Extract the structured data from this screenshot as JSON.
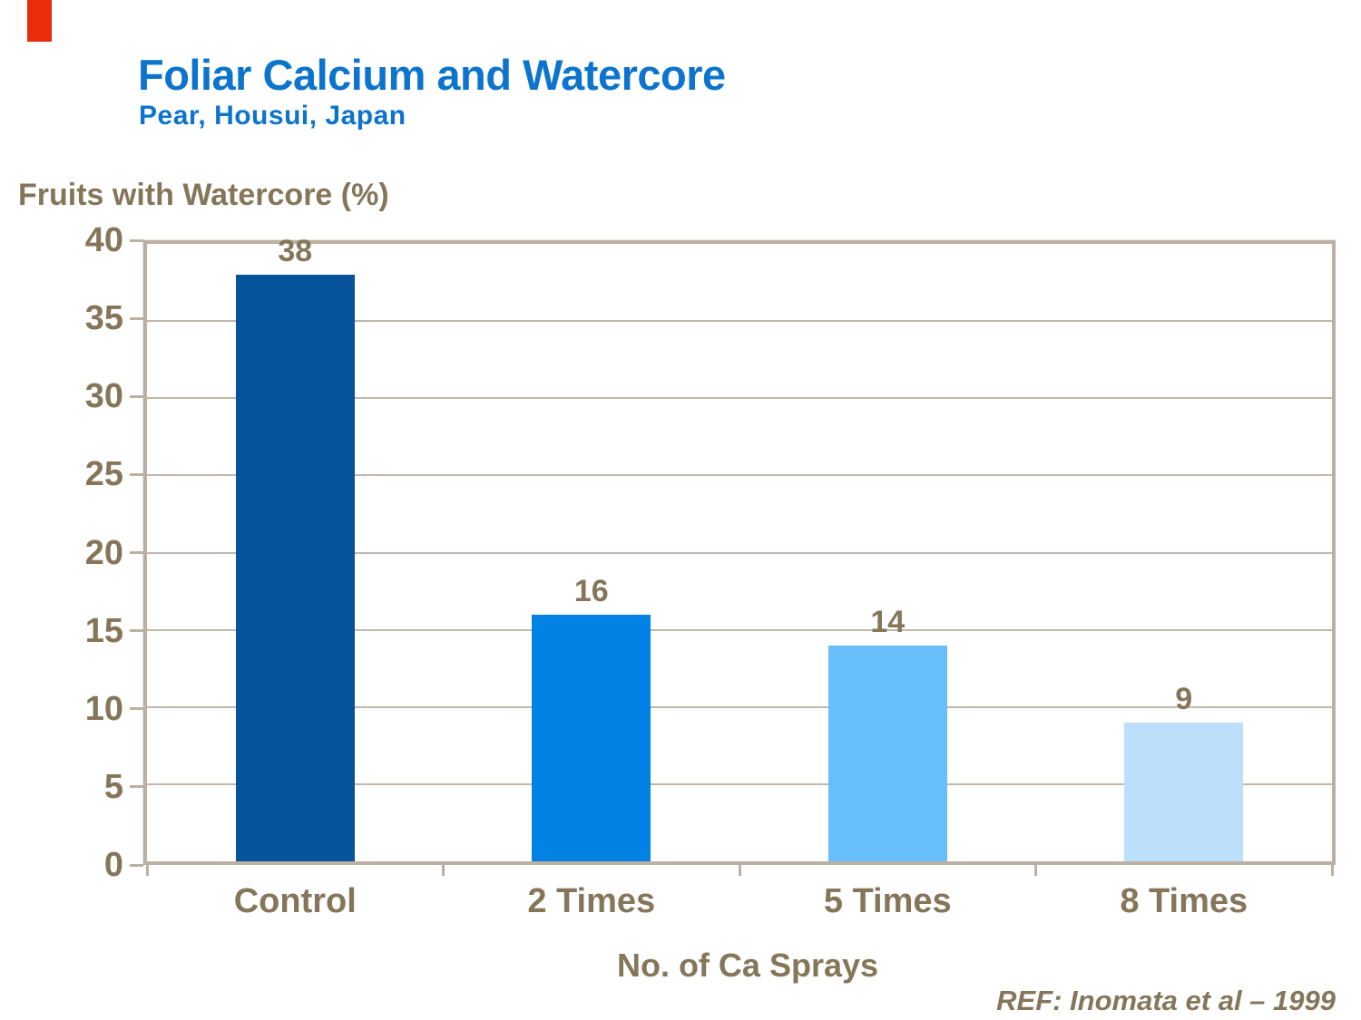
{
  "slide": {
    "title": "Foliar Calcium and Watercore",
    "subtitle": "Pear, Housui, Japan",
    "ref_note": "REF: Inomata et al – 1999"
  },
  "colors": {
    "accent_red": "#EB2D0D",
    "title_blue": "#0C74CC",
    "text_brown": "#85765A",
    "frame": "#BCB0A2",
    "gridline": "#C2B7A8",
    "bar_colors": [
      "#06539B",
      "#0382E6",
      "#67BEFB",
      "#BCE0FB"
    ]
  },
  "chart_data": {
    "type": "bar",
    "title": "Foliar Calcium and Watercore",
    "subtitle": "Pear, Housui, Japan",
    "categories": [
      "Control",
      "2 Times",
      "5 Times",
      "8 Times"
    ],
    "values": [
      38,
      16,
      14,
      9
    ],
    "value_labels": [
      "38",
      "16",
      "14",
      "9"
    ],
    "xlabel": "No. of Ca Sprays",
    "ylabel": "Fruits with Watercore (%)",
    "ylim": [
      0,
      40
    ],
    "yticks": [
      0,
      5,
      10,
      15,
      20,
      25,
      30,
      35,
      40
    ],
    "grid": "horizontal-only",
    "legend_position": "none"
  }
}
